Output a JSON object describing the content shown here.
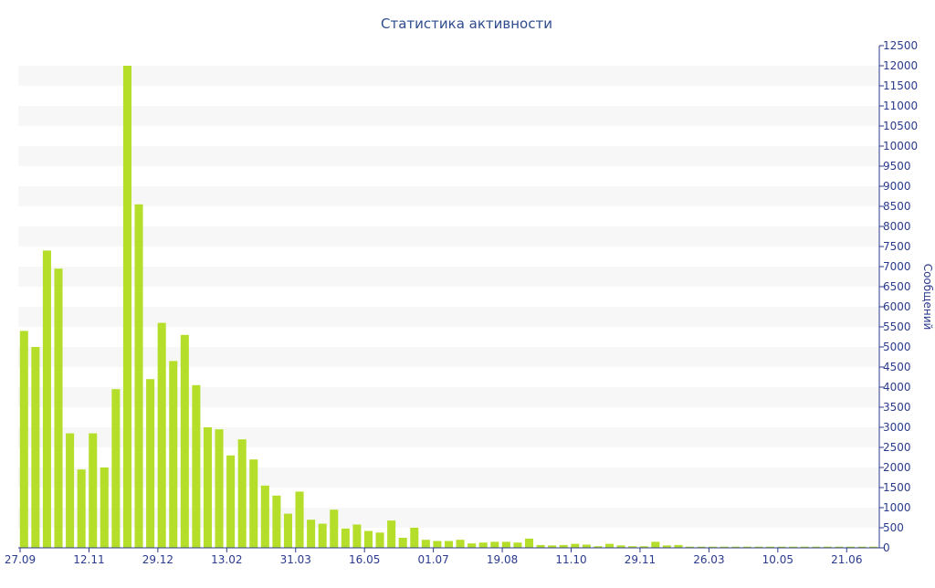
{
  "chart_data": {
    "type": "bar",
    "title": "Статистика активности",
    "xlabel": "",
    "ylabel": "Сообщений",
    "ylim": [
      0,
      12500
    ],
    "ytick_step": 500,
    "grid": "alternating horizontal bands",
    "y_axis_position": "right",
    "x_tick_labels": [
      "27.09",
      "12.11",
      "29.12",
      "13.02",
      "31.03",
      "16.05",
      "01.07",
      "19.08",
      "11.10",
      "29.11",
      "26.03",
      "10.05",
      "21.06"
    ],
    "x_tick_positions": [
      0,
      6,
      12,
      18,
      24,
      30,
      36,
      42,
      48,
      54,
      60,
      66,
      72
    ],
    "values": [
      5400,
      5000,
      7400,
      6950,
      2850,
      1950,
      2850,
      2000,
      3950,
      12000,
      8550,
      4200,
      5600,
      4650,
      5300,
      4050,
      3000,
      2950,
      2300,
      2700,
      2200,
      1550,
      1300,
      850,
      1400,
      700,
      600,
      950,
      480,
      580,
      420,
      380,
      680,
      250,
      500,
      200,
      170,
      170,
      200,
      110,
      130,
      150,
      150,
      130,
      230,
      70,
      60,
      70,
      100,
      80,
      40,
      100,
      60,
      40,
      40,
      150,
      60,
      70,
      30,
      30,
      30,
      30,
      30,
      30,
      30,
      30,
      30,
      30,
      30,
      30,
      30,
      30,
      30,
      30,
      30
    ],
    "colors": {
      "bar": "#b5de2b",
      "band": "#f7f7f7",
      "axis": "#2b3a8c",
      "title": "#2e4c8e"
    }
  }
}
